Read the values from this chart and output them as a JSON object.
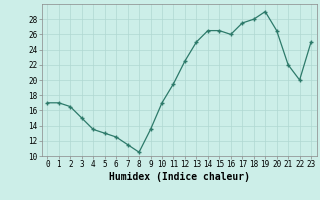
{
  "x": [
    0,
    1,
    2,
    3,
    4,
    5,
    6,
    7,
    8,
    9,
    10,
    11,
    12,
    13,
    14,
    15,
    16,
    17,
    18,
    19,
    20,
    21,
    22,
    23
  ],
  "y": [
    17,
    17,
    16.5,
    15,
    13.5,
    13,
    12.5,
    11.5,
    10.5,
    13.5,
    17,
    19.5,
    22.5,
    25,
    26.5,
    26.5,
    26,
    27.5,
    28,
    29,
    26.5,
    22,
    20,
    25
  ],
  "line_color": "#2d7a6a",
  "marker": "+",
  "bg_color": "#cceee8",
  "grid_color": "#b0d8d2",
  "xlabel": "Humidex (Indice chaleur)",
  "ylim": [
    10,
    30
  ],
  "yticks": [
    10,
    12,
    14,
    16,
    18,
    20,
    22,
    24,
    26,
    28
  ],
  "xticks": [
    0,
    1,
    2,
    3,
    4,
    5,
    6,
    7,
    8,
    9,
    10,
    11,
    12,
    13,
    14,
    15,
    16,
    17,
    18,
    19,
    20,
    21,
    22,
    23
  ],
  "tick_fontsize": 5.5,
  "xlabel_fontsize": 7
}
